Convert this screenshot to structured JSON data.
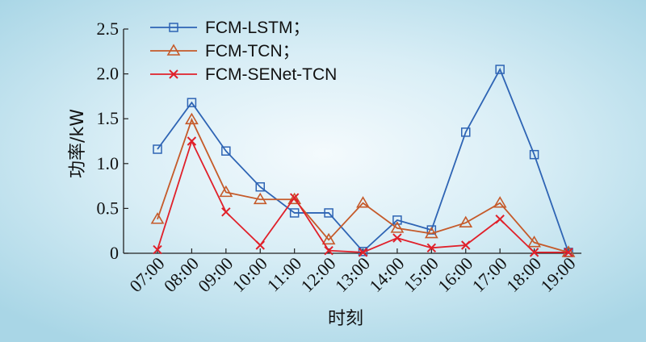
{
  "chart_data": {
    "type": "line",
    "xlabel": "时刻",
    "ylabel": "功率/kW",
    "categories": [
      "07:00",
      "08:00",
      "09:00",
      "10:00",
      "11:00",
      "12:00",
      "13:00",
      "14:00",
      "15:00",
      "16:00",
      "17:00",
      "18:00",
      "19:00"
    ],
    "ylim": [
      0,
      2.5
    ],
    "yticks": [
      "0",
      "0.5",
      "1.0",
      "1.5",
      "2.0",
      "2.5"
    ],
    "grid": false,
    "legend_position": "top-left",
    "series": [
      {
        "name": "FCM-LSTM；",
        "color": "#2e64b4",
        "marker": "square",
        "values": [
          1.16,
          1.68,
          1.14,
          0.74,
          0.45,
          0.45,
          0.02,
          0.37,
          0.26,
          1.35,
          2.05,
          1.1,
          0.01
        ]
      },
      {
        "name": "FCM-TCN；",
        "color": "#c55a2a",
        "marker": "triangle",
        "values": [
          0.38,
          1.49,
          0.68,
          0.6,
          0.6,
          0.15,
          0.56,
          0.28,
          0.22,
          0.34,
          0.56,
          0.12,
          0.01
        ]
      },
      {
        "name": "FCM-SENet-TCN",
        "color": "#e0202a",
        "marker": "x",
        "values": [
          0.04,
          1.25,
          0.46,
          0.09,
          0.62,
          0.03,
          0.01,
          0.17,
          0.06,
          0.09,
          0.38,
          0.01,
          0.01
        ]
      }
    ]
  }
}
